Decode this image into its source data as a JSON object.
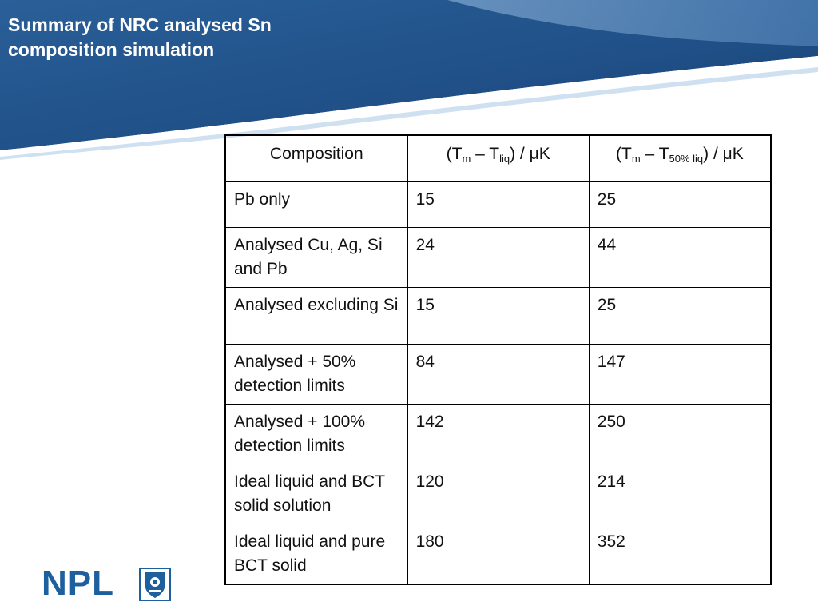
{
  "slide": {
    "title": "Summary of NRC analysed Sn composition simulation"
  },
  "table": {
    "headers": {
      "composition": "Composition",
      "col2_prefix": "(T",
      "col2_sub1": "m",
      "col2_mid": " – T",
      "col2_sub2": "liq",
      "col2_suffix": ") / μK",
      "col3_prefix": "(T",
      "col3_sub1": "m",
      "col3_mid": " – T",
      "col3_sub2": "50% liq",
      "col3_suffix": ") / μK"
    },
    "rows": [
      {
        "composition": "Pb only",
        "tm_tliq": "15",
        "tm_t50": "25"
      },
      {
        "composition": "Analysed Cu, Ag, Si and Pb",
        "tm_tliq": "24",
        "tm_t50": "44"
      },
      {
        "composition": "Analysed excluding Si",
        "tm_tliq": "15",
        "tm_t50": "25"
      },
      {
        "composition": "Analysed + 50% detection limits",
        "tm_tliq": "84",
        "tm_t50": "147"
      },
      {
        "composition": "Analysed + 100% detection limits",
        "tm_tliq": "142",
        "tm_t50": "250"
      },
      {
        "composition": "Ideal liquid and BCT solid solution",
        "tm_tliq": "120",
        "tm_t50": "214"
      },
      {
        "composition": "Ideal liquid and pure BCT solid",
        "tm_tliq": "180",
        "tm_t50": "352"
      }
    ]
  },
  "logo": {
    "text": "NPL",
    "color": "#1e5f9e"
  },
  "colors": {
    "header_dark": "#1f4f86",
    "header_light": "#5d8fc4",
    "stripe": "#ffffff"
  }
}
